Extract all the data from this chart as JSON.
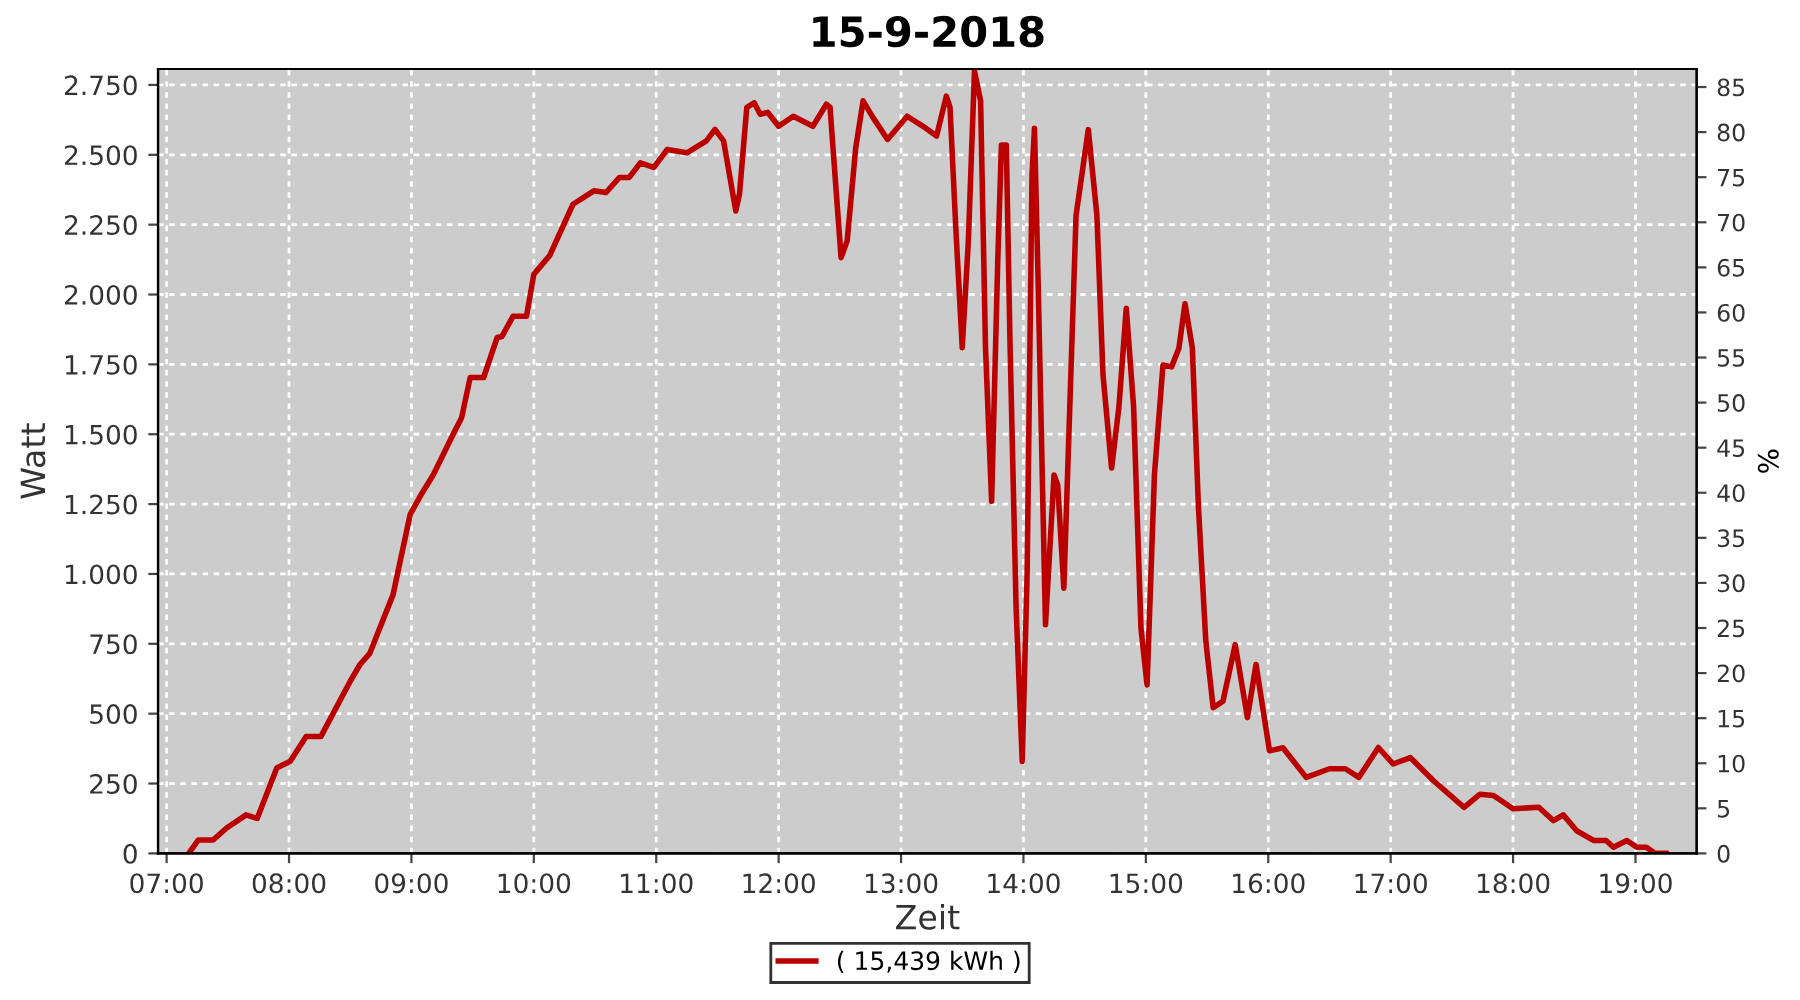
{
  "chart_data": {
    "type": "line",
    "title": "15-9-2018",
    "xlabel": "Zeit",
    "ylabel": "Watt",
    "y2label": "%",
    "xlim": [
      6.93,
      19.5
    ],
    "xticks": [
      {
        "value": 7,
        "label": "07:00"
      },
      {
        "value": 8,
        "label": "08:00"
      },
      {
        "value": 9,
        "label": "09:00"
      },
      {
        "value": 10,
        "label": "10:00"
      },
      {
        "value": 11,
        "label": "11:00"
      },
      {
        "value": 12,
        "label": "12:00"
      },
      {
        "value": 13,
        "label": "13:00"
      },
      {
        "value": 14,
        "label": "14:00"
      },
      {
        "value": 15,
        "label": "15:00"
      },
      {
        "value": 16,
        "label": "16:00"
      },
      {
        "value": 17,
        "label": "17:00"
      },
      {
        "value": 18,
        "label": "18:00"
      },
      {
        "value": 19,
        "label": "19:00"
      }
    ],
    "ylim": [
      0,
      2807
    ],
    "yticks": [
      0,
      250,
      500,
      750,
      {
        "value": 1000,
        "label": "1.000"
      },
      {
        "value": 1250,
        "label": "1.250"
      },
      {
        "value": 1500,
        "label": "1.500"
      },
      {
        "value": 1750,
        "label": "1.750"
      },
      {
        "value": 2000,
        "label": "2.000"
      },
      {
        "value": 2250,
        "label": "2.250"
      },
      {
        "value": 2500,
        "label": "2.500"
      },
      {
        "value": 2750,
        "label": "2.750"
      }
    ],
    "y2lim": [
      0,
      87.0
    ],
    "y2ticks": [
      0,
      5,
      10,
      15,
      20,
      25,
      30,
      35,
      40,
      45,
      50,
      55,
      60,
      65,
      70,
      75,
      80,
      85
    ],
    "grid": true,
    "legend": "bottom",
    "line_style": "solid",
    "series": [
      {
        "name": "( 15,439 kWh )",
        "color": "#bb0000",
        "x": [
          7.18,
          7.26,
          7.38,
          7.49,
          7.65,
          7.74,
          7.9,
          8.01,
          8.14,
          8.26,
          8.5,
          8.58,
          8.66,
          8.85,
          8.99,
          9.07,
          9.18,
          9.34,
          9.41,
          9.48,
          9.59,
          9.7,
          9.74,
          9.83,
          9.94,
          10.0,
          10.13,
          10.32,
          10.49,
          10.59,
          10.7,
          10.78,
          10.87,
          10.98,
          11.09,
          11.25,
          11.41,
          11.48,
          11.55,
          11.65,
          11.68,
          11.74,
          11.8,
          11.85,
          11.91,
          12.0,
          12.12,
          12.28,
          12.39,
          12.42,
          12.51,
          12.56,
          12.63,
          12.69,
          12.77,
          12.89,
          13.05,
          13.18,
          13.29,
          13.37,
          13.4,
          13.45,
          13.5,
          13.55,
          13.6,
          13.65,
          13.69,
          13.74,
          13.79,
          13.82,
          13.86,
          13.89,
          13.94,
          13.99,
          14.03,
          14.07,
          14.09,
          14.12,
          14.18,
          14.25,
          14.28,
          14.33,
          14.38,
          14.43,
          14.53,
          14.6,
          14.65,
          14.72,
          14.78,
          14.84,
          14.9,
          14.96,
          15.01,
          15.07,
          15.14,
          15.21,
          15.27,
          15.32,
          15.38,
          15.43,
          15.49,
          15.55,
          15.63,
          15.73,
          15.83,
          15.9,
          16.01,
          16.12,
          16.31,
          16.5,
          16.63,
          16.74,
          16.9,
          17.02,
          17.16,
          17.35,
          17.6,
          17.73,
          17.84,
          18.0,
          18.21,
          18.33,
          18.41,
          18.52,
          18.66,
          18.76,
          18.82,
          18.93,
          19.01,
          19.09,
          19.16,
          19.25
        ],
        "values": [
          0,
          48,
          48,
          91,
          138,
          125,
          306,
          330,
          418,
          418,
          616,
          676,
          716,
          926,
          1213,
          1277,
          1356,
          1499,
          1559,
          1703,
          1703,
          1846,
          1850,
          1922,
          1922,
          2072,
          2140,
          2323,
          2371,
          2365,
          2419,
          2419,
          2471,
          2455,
          2519,
          2507,
          2550,
          2591,
          2550,
          2299,
          2359,
          2670,
          2686,
          2645,
          2652,
          2602,
          2638,
          2602,
          2681,
          2670,
          2132,
          2192,
          2526,
          2693,
          2634,
          2555,
          2638,
          2602,
          2567,
          2710,
          2670,
          2216,
          1810,
          2192,
          2800,
          2693,
          1810,
          1260,
          2119,
          2535,
          2535,
          1832,
          878,
          329,
          997,
          2428,
          2595,
          2046,
          818,
          1354,
          1318,
          949,
          1617,
          2284,
          2590,
          2284,
          1712,
          1379,
          1598,
          1951,
          1598,
          806,
          603,
          1354,
          1748,
          1741,
          1808,
          1967,
          1808,
          1236,
          759,
          521,
          545,
          747,
          486,
          676,
          367,
          378,
          272,
          303,
          303,
          272,
          379,
          320,
          343,
          260,
          165,
          212,
          207,
          160,
          165,
          117,
          138,
          81,
          46,
          46,
          22,
          46,
          22,
          22,
          0,
          0
        ]
      }
    ]
  }
}
